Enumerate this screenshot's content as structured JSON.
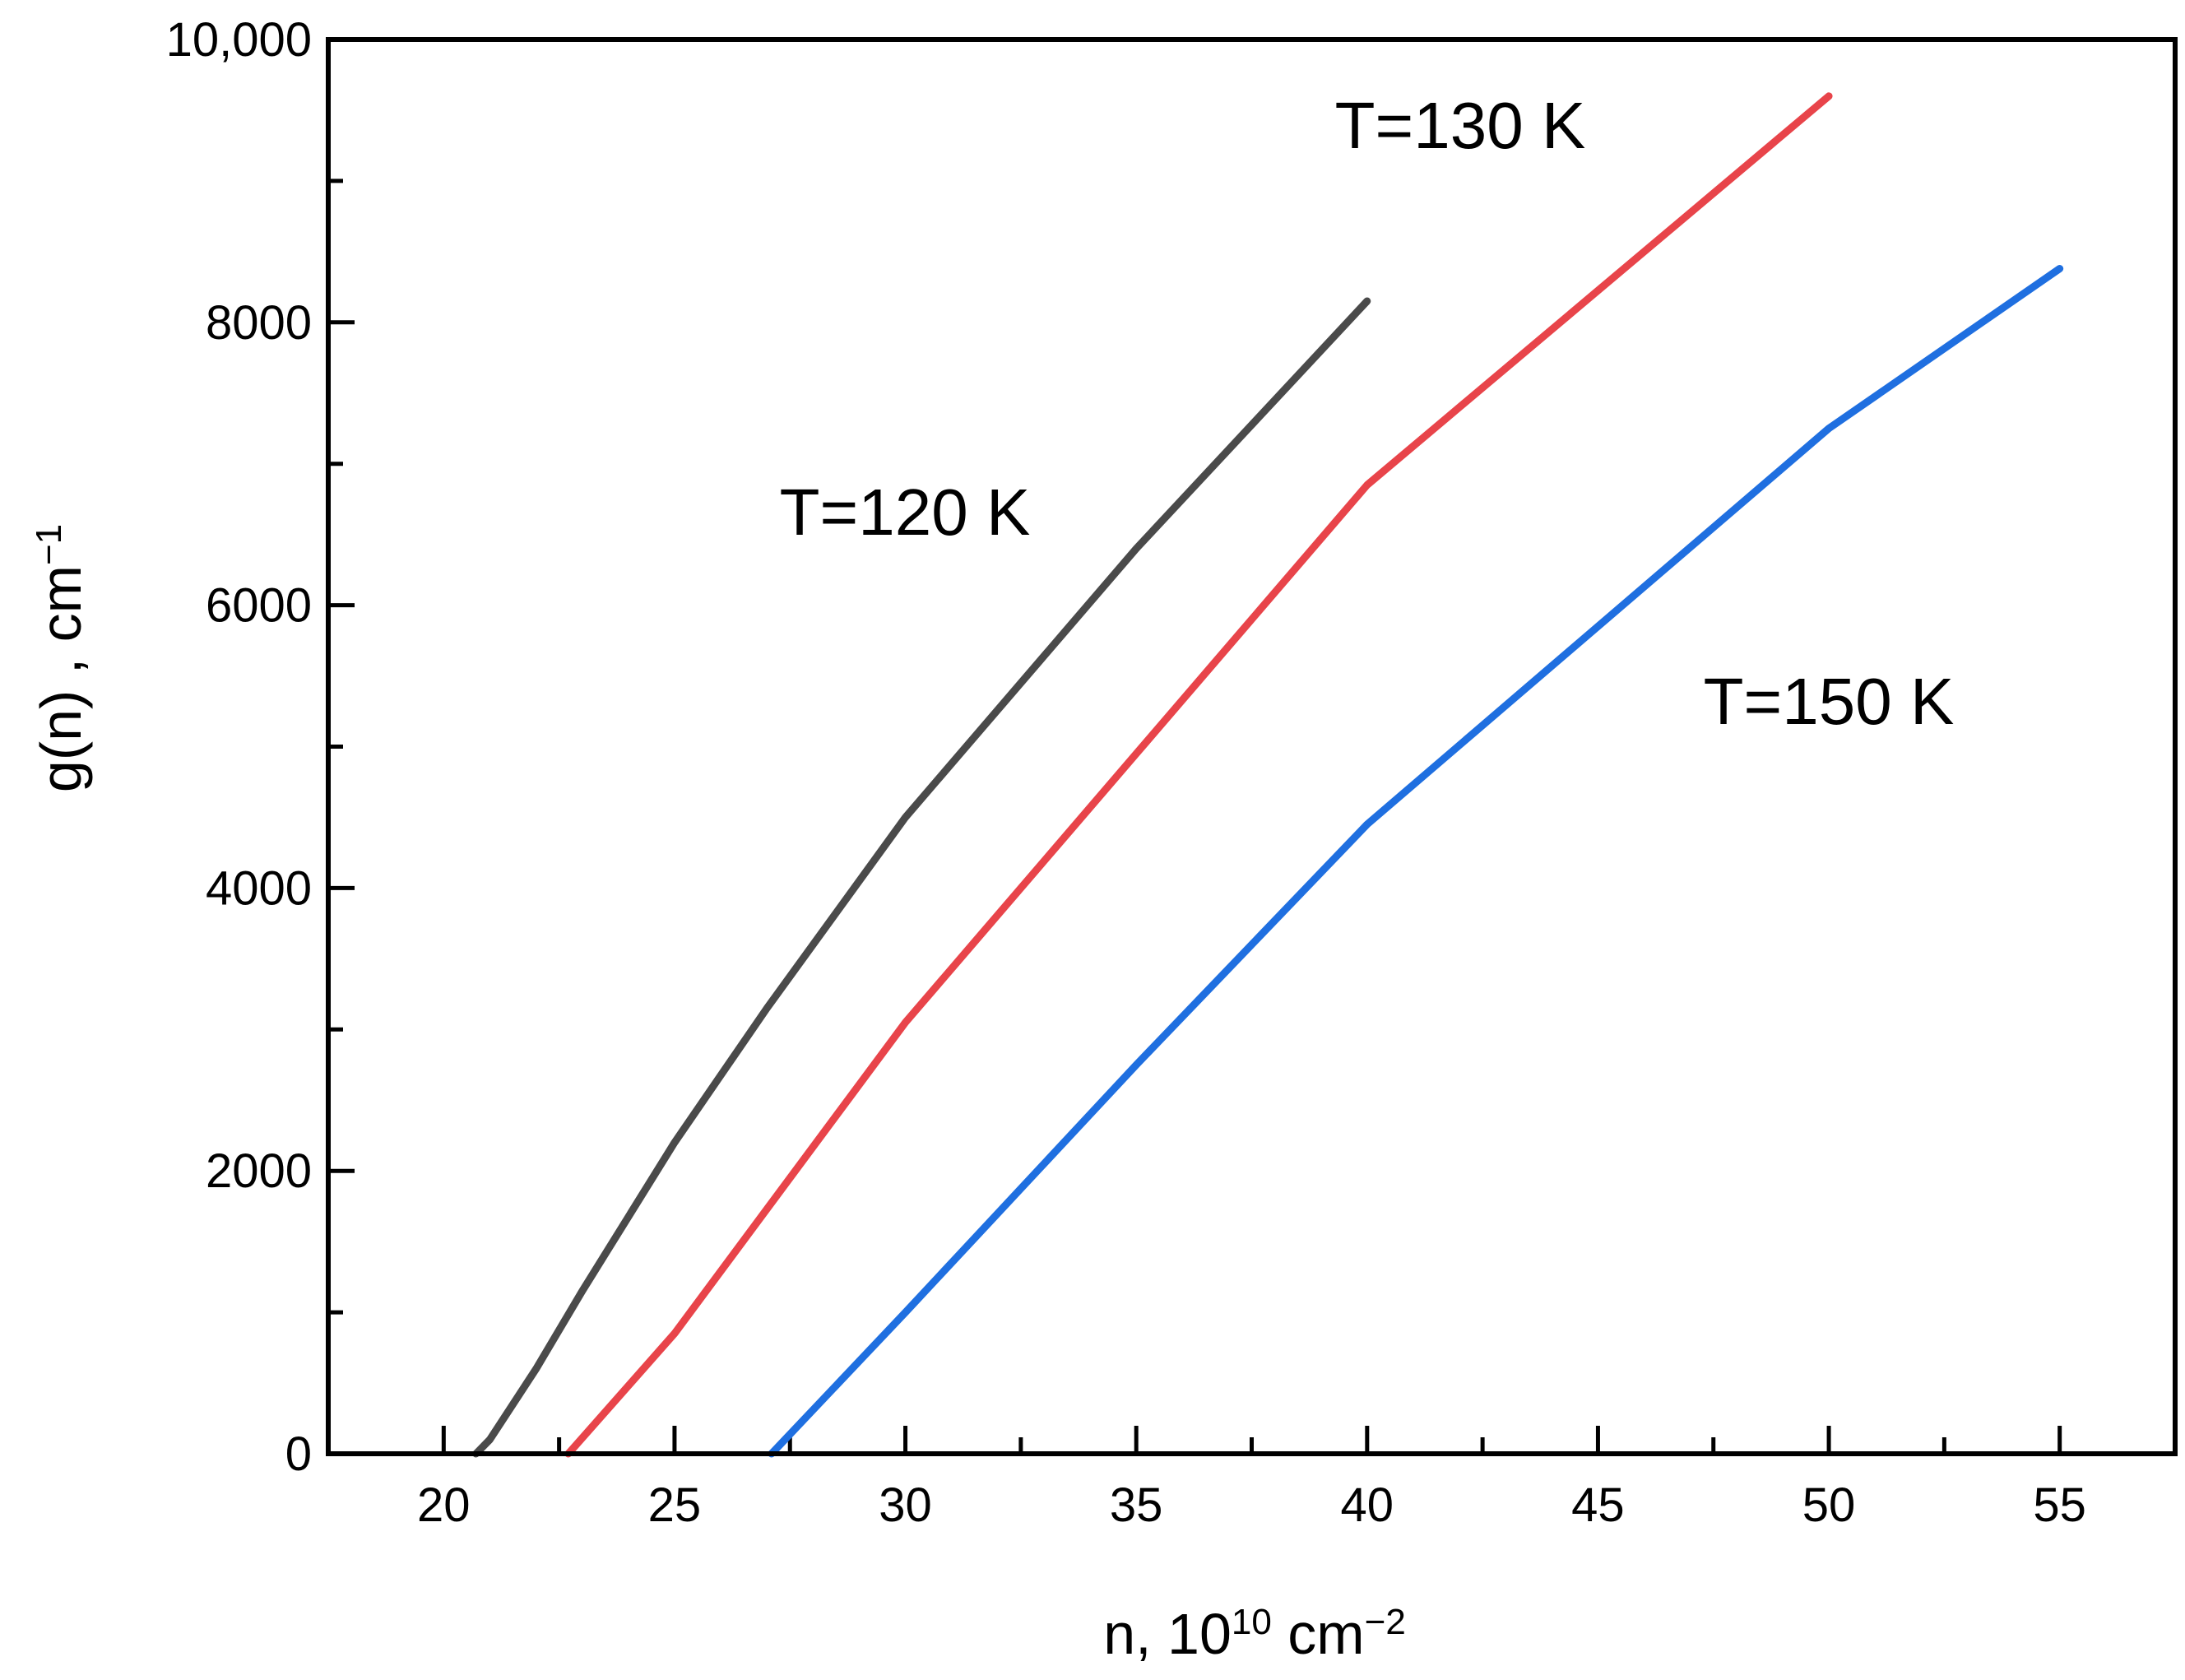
{
  "chart_data": {
    "type": "line",
    "title": "",
    "xlabel": {
      "base": "n, 10",
      "sup1": "10",
      "mid": " cm",
      "sup2": "−2"
    },
    "ylabel": {
      "base": "g(n) , cm",
      "sup": "−1"
    },
    "xlim": [
      17.5,
      57.5
    ],
    "ylim": [
      0,
      10000
    ],
    "x_ticks": [
      20,
      25,
      30,
      35,
      40,
      45,
      50,
      55
    ],
    "x_tick_labels": [
      "20",
      "25",
      "30",
      "35",
      "40",
      "45",
      "50",
      "55"
    ],
    "x_minor_ticks": [
      22.5,
      27.5,
      32.5,
      37.5,
      42.5,
      47.5,
      52.5
    ],
    "y_ticks": [
      0,
      2000,
      4000,
      6000,
      8000,
      10000
    ],
    "y_tick_labels": [
      "0",
      "2000",
      "4000",
      "6000",
      "8000",
      "10,000"
    ],
    "y_minor_ticks": [
      1000,
      3000,
      5000,
      7000,
      9000
    ],
    "grid": false,
    "legend": "inline labels next to curves",
    "series": [
      {
        "name": "T=120 K",
        "color": "#4a4a4a",
        "x": [
          20.7,
          21,
          22,
          23,
          25,
          27,
          30,
          35,
          40
        ],
        "y": [
          0,
          100,
          600,
          1150,
          2200,
          3150,
          4500,
          6400,
          8150
        ]
      },
      {
        "name": "T=130 K",
        "color": "#e8444a",
        "x": [
          22.7,
          25,
          30,
          35,
          40,
          50
        ],
        "y": [
          0,
          850,
          3050,
          4950,
          6850,
          9600
        ]
      },
      {
        "name": "T=150 K",
        "color": "#1f6fe0",
        "x": [
          27.1,
          30,
          35,
          40,
          50,
          55
        ],
        "y": [
          0,
          1000,
          2750,
          4450,
          7250,
          8380
        ]
      }
    ]
  }
}
